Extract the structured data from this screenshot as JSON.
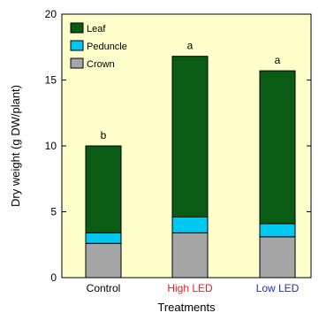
{
  "chart_data": {
    "type": "bar",
    "stacked": true,
    "categories": [
      "Control",
      "High LED",
      "Low LED"
    ],
    "category_colors": [
      "#000000",
      "#e8202a",
      "#2a2ab8"
    ],
    "series": [
      {
        "name": "Crown",
        "color": "#a6a6a6",
        "values": [
          2.6,
          3.4,
          3.1
        ]
      },
      {
        "name": "Peduncle",
        "color": "#00c8f0",
        "values": [
          0.8,
          1.2,
          1.0
        ]
      },
      {
        "name": "Leaf",
        "color": "#0a5c14",
        "values": [
          6.6,
          12.2,
          11.6
        ]
      }
    ],
    "totals": [
      10.0,
      16.8,
      15.7
    ],
    "letters": [
      "b",
      "a",
      "a"
    ],
    "legend_order": [
      "Leaf",
      "Peduncle",
      "Crown"
    ],
    "legend_position": "top-left",
    "ylabel": "Dry weight (g DW/plant)",
    "xlabel": "Treatments",
    "ylim": [
      0,
      20
    ],
    "yticks": [
      0,
      5,
      10,
      15,
      20
    ],
    "plot_background": "#ffffcc",
    "grid": false
  }
}
